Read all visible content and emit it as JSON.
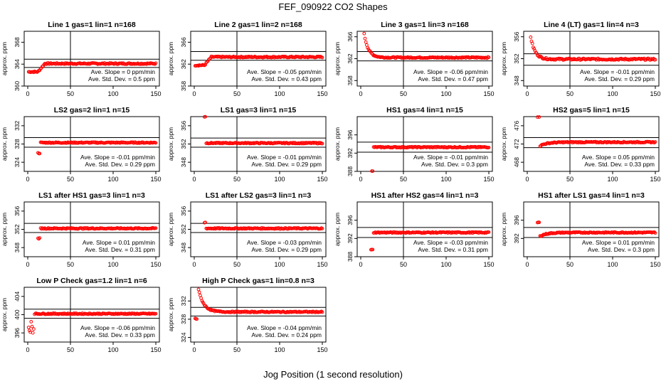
{
  "figure": {
    "title": "FEF_090922  CO2 Shapes",
    "xlabel": "Jog Position (1 second resolution)"
  },
  "style": {
    "point_color": "#ff0000",
    "line_color": "#000000"
  },
  "chart_data": [
    {
      "type": "scatter",
      "title": "Line 1 gas=1 lin=1 n=168",
      "ylabel": "approx. ppm",
      "xlim": [
        0,
        150
      ],
      "ylim": [
        360,
        370
      ],
      "xticks": [
        0,
        50,
        100,
        150
      ],
      "yticks": [
        360,
        364,
        368
      ],
      "ref_lines_y": [
        363.4,
        364.9
      ],
      "vline_x": 50,
      "series_shape": "step",
      "start": 362.6,
      "settle": 364.1,
      "noise": 0.12,
      "annotations": [
        "Ave. Slope = 0  ppm/min",
        "Ave. Std. Dev. = 0.5  ppm"
      ]
    },
    {
      "type": "scatter",
      "title": "Line 2 gas=1 lin=2 n=168",
      "ylabel": "approx. ppm",
      "xlim": [
        0,
        150
      ],
      "ylim": [
        358,
        368
      ],
      "xticks": [
        0,
        50,
        100,
        150
      ],
      "yticks": [
        358,
        362,
        366
      ],
      "ref_lines_y": [
        362.7,
        364.3
      ],
      "vline_x": 50,
      "series_shape": "step",
      "start": 361.8,
      "settle": 363.3,
      "noise": 0.12,
      "annotations": [
        "Ave. Slope = -0.05  ppm/min",
        "Ave. Std. Dev. = 0.43  ppm"
      ]
    },
    {
      "type": "scatter",
      "title": "Line 3 gas=1 lin=3 n=168",
      "ylabel": "approx. ppm",
      "xlim": [
        0,
        150
      ],
      "ylim": [
        357,
        367
      ],
      "xticks": [
        0,
        50,
        100,
        150
      ],
      "yticks": [
        358,
        362,
        366
      ],
      "ref_lines_y": [
        361.6,
        363.3
      ],
      "vline_x": 50,
      "series_shape": "decay",
      "start": 366.5,
      "settle": 362.2,
      "noise": 0.12,
      "annotations": [
        "Ave. Slope = -0.06  ppm/min",
        "Ave. Std. Dev. = 0.47  ppm"
      ]
    },
    {
      "type": "scatter",
      "title": "Line 4 (LT) gas=1 lin=4 n=3",
      "ylabel": "approx. ppm",
      "xlim": [
        0,
        150
      ],
      "ylim": [
        347,
        357
      ],
      "xticks": [
        0,
        50,
        100,
        150
      ],
      "yticks": [
        348,
        352,
        356
      ],
      "ref_lines_y": [
        350.8,
        352.9
      ],
      "vline_x": 50,
      "series_shape": "decay",
      "start": 356,
      "settle": 351.9,
      "noise": 0.15,
      "annotations": [
        "Ave. Slope = -0.01  ppm/min",
        "Ave. Std. Dev. = 0.29  ppm"
      ]
    },
    {
      "type": "scatter",
      "title": "LS2 gas=2 lin=1 n=15",
      "ylabel": "approx. ppm",
      "xlim": [
        0,
        150
      ],
      "ylim": [
        322,
        334
      ],
      "xticks": [
        0,
        50,
        100,
        150
      ],
      "yticks": [
        324,
        328,
        332
      ],
      "ref_lines_y": [
        327.3,
        329.4
      ],
      "vline_x": 50,
      "series_shape": "dip",
      "start": 326,
      "settle": 328.3,
      "noise": 0.12,
      "annotations": [
        "Ave. Slope = -0.01  ppm/min",
        "Ave. Std. Dev. = 0.29  ppm"
      ]
    },
    {
      "type": "scatter",
      "title": "LS1 gas=3 lin=1 n=15",
      "ylabel": "approx. ppm",
      "xlim": [
        0,
        150
      ],
      "ylim": [
        346,
        358
      ],
      "xticks": [
        0,
        50,
        100,
        150
      ],
      "yticks": [
        348,
        352,
        356
      ],
      "ref_lines_y": [
        351.3,
        353.3
      ],
      "vline_x": 50,
      "series_shape": "spike",
      "start": 358,
      "settle": 352.2,
      "noise": 0.12,
      "annotations": [
        "Ave. Slope = -0.01  ppm/min",
        "Ave. Std. Dev. = 0.29  ppm"
      ]
    },
    {
      "type": "scatter",
      "title": "HS1 gas=4 lin=1 n=15",
      "ylabel": "approx. ppm",
      "xlim": [
        0,
        150
      ],
      "ylim": [
        388,
        400
      ],
      "xticks": [
        0,
        50,
        100,
        150
      ],
      "yticks": [
        388,
        392,
        396
      ],
      "ref_lines_y": [
        392.2,
        394.4
      ],
      "vline_x": 50,
      "series_shape": "dip",
      "start": 388,
      "settle": 393.3,
      "noise": 0.12,
      "annotations": [
        "Ave. Slope = -0.01  ppm/min",
        "Ave. Std. Dev. = 0.3  ppm"
      ]
    },
    {
      "type": "scatter",
      "title": "HS2 gas=5 lin=1 n=15",
      "ylabel": "approx. ppm",
      "xlim": [
        0,
        150
      ],
      "ylim": [
        466,
        478
      ],
      "xticks": [
        0,
        50,
        100,
        150
      ],
      "yticks": [
        468,
        472,
        476
      ],
      "ref_lines_y": [
        471.2,
        473.4
      ],
      "vline_x": 50,
      "series_shape": "spike_recover",
      "start": 478,
      "settle": 472.4,
      "noise": 0.12,
      "annotations": [
        "Ave. Slope = 0.05  ppm/min",
        "Ave. Std. Dev. = 0.33  ppm"
      ]
    },
    {
      "type": "scatter",
      "title": "LS1 after HS1 gas=3 lin=1 n=3",
      "ylabel": "approx. ppm",
      "xlim": [
        0,
        150
      ],
      "ylim": [
        346,
        358
      ],
      "xticks": [
        0,
        50,
        100,
        150
      ],
      "yticks": [
        348,
        352,
        356
      ],
      "ref_lines_y": [
        351.3,
        353.3
      ],
      "vline_x": 50,
      "series_shape": "dip",
      "start": 350,
      "settle": 352.2,
      "noise": 0.12,
      "annotations": [
        "Ave. Slope = 0.01  ppm/min",
        "Ave. Std. Dev. = 0.31  ppm"
      ]
    },
    {
      "type": "scatter",
      "title": "LS1 after LS2 gas=3 lin=1 n=3",
      "ylabel": "approx. ppm",
      "xlim": [
        0,
        150
      ],
      "ylim": [
        346,
        358
      ],
      "xticks": [
        0,
        50,
        100,
        150
      ],
      "yticks": [
        348,
        352,
        356
      ],
      "ref_lines_y": [
        351.3,
        353.3
      ],
      "vline_x": 50,
      "series_shape": "spike",
      "start": 353.5,
      "settle": 352.2,
      "noise": 0.12,
      "annotations": [
        "Ave. Slope = -0.03  ppm/min",
        "Ave. Std. Dev. = 0.29  ppm"
      ]
    },
    {
      "type": "scatter",
      "title": "HS1 after HS2 gas=4 lin=1 n=3",
      "ylabel": "approx. ppm",
      "xlim": [
        0,
        150
      ],
      "ylim": [
        388,
        400
      ],
      "xticks": [
        0,
        50,
        100,
        150
      ],
      "yticks": [
        388,
        392,
        396
      ],
      "ref_lines_y": [
        392.2,
        394.4
      ],
      "vline_x": 50,
      "series_shape": "dip",
      "start": 389.5,
      "settle": 393.3,
      "noise": 0.12,
      "annotations": [
        "Ave. Slope = -0.03  ppm/min",
        "Ave. Std. Dev. = 0.31  ppm"
      ]
    },
    {
      "type": "scatter",
      "title": "HS1 after LS1 gas=4 lin=1 n=3",
      "ylabel": "approx. ppm",
      "xlim": [
        0,
        150
      ],
      "ylim": [
        388,
        400
      ],
      "xticks": [
        0,
        50,
        100,
        150
      ],
      "yticks": [
        392,
        396
      ],
      "ref_lines_y": [
        392.2,
        394.4
      ],
      "vline_x": 50,
      "series_shape": "spike_recover",
      "start": 395.5,
      "settle": 393.3,
      "noise": 0.12,
      "annotations": [
        "Ave. Slope = 0.01  ppm/min",
        "Ave. Std. Dev. = 0.3  ppm"
      ]
    },
    {
      "type": "scatter",
      "title": "Low P Check gas=1.2 lin=1 n=6",
      "ylabel": "approx. ppm",
      "xlim": [
        0,
        150
      ],
      "ylim": [
        394,
        406
      ],
      "xticks": [
        0,
        50,
        100,
        150
      ],
      "yticks": [
        396,
        400,
        404
      ],
      "ref_lines_y": [
        399.2,
        401.2
      ],
      "vline_x": 50,
      "series_shape": "scatter_start",
      "start": 397.5,
      "settle": 400.2,
      "noise": 0.12,
      "annotations": [
        "Ave. Slope = -0.06  ppm/min",
        "Ave. Std. Dev. = 0.33  ppm"
      ]
    },
    {
      "type": "scatter",
      "title": "High P Check gas=1 lin=0.8 n=3",
      "ylabel": "approx. ppm",
      "xlim": [
        0,
        150
      ],
      "ylim": [
        323,
        335
      ],
      "xticks": [
        0,
        50,
        100,
        150
      ],
      "yticks": [
        324,
        328,
        332
      ],
      "ref_lines_y": [
        328.7,
        330.6
      ],
      "vline_x": 50,
      "series_shape": "high_decay",
      "start": 333.8,
      "settle": 329.6,
      "noise": 0.12,
      "annotations": [
        "Ave. Slope = -0.04  ppm/min",
        "Ave. Std. Dev. = 0.24  ppm"
      ]
    }
  ]
}
